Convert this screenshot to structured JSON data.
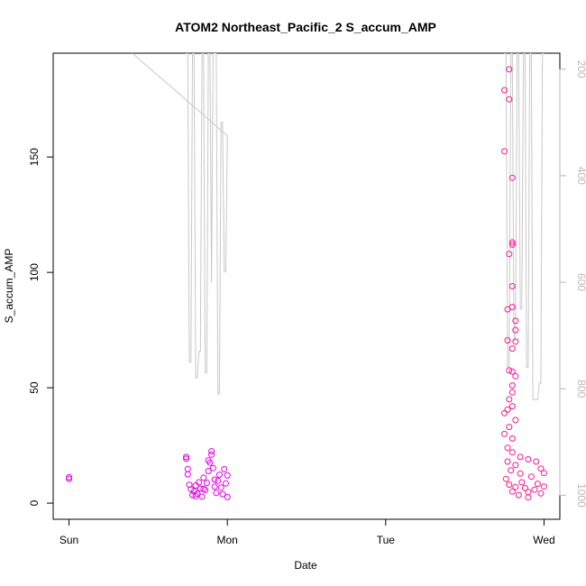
{
  "chart_data": {
    "type": "scatter",
    "title": "ATOM2 Northeast_Pacific_2 S_accum_AMP",
    "xlabel": "Date",
    "ylabel": "S_accum_AMP",
    "x_ticks": [
      "Sun",
      "Mon",
      "Tue",
      "Wed"
    ],
    "y_ticks": [
      0,
      50,
      100,
      150
    ],
    "y_right_ticks": [
      200,
      400,
      600,
      800,
      1000
    ],
    "xlim_days": [
      -0.1,
      3.1
    ],
    "ylim": [
      -7,
      195
    ],
    "y_right_lim": [
      1045,
      170
    ],
    "y_right_reversed": true,
    "grid": false,
    "colors": {
      "scatter_mon": "#e600e6",
      "scatter_wed": "#ff1493",
      "depth_line": "#c8c8c8",
      "right_axis": "#b8b8b8"
    },
    "series": [
      {
        "name": "",
        "kind": "scatter",
        "color": "#e600e6",
        "points": [
          [
            0.0,
            10.5
          ],
          [
            0.0,
            11.2
          ],
          [
            0.74,
            20.0
          ],
          [
            0.74,
            19.2
          ],
          [
            0.75,
            14.8
          ],
          [
            0.75,
            12.5
          ],
          [
            0.76,
            8.0
          ],
          [
            0.77,
            6.0
          ],
          [
            0.78,
            3.5
          ],
          [
            0.79,
            5.2
          ],
          [
            0.8,
            7.6
          ],
          [
            0.81,
            4.1
          ],
          [
            0.82,
            9.0
          ],
          [
            0.83,
            6.3
          ],
          [
            0.84,
            2.8
          ],
          [
            0.85,
            11.0
          ],
          [
            0.86,
            5.7
          ],
          [
            0.87,
            8.8
          ],
          [
            0.88,
            13.9
          ],
          [
            0.89,
            17.5
          ],
          [
            0.9,
            21.0
          ],
          [
            0.9,
            22.5
          ],
          [
            0.91,
            15.2
          ],
          [
            0.92,
            7.1
          ],
          [
            0.93,
            4.4
          ],
          [
            0.94,
            9.7
          ],
          [
            0.95,
            12.3
          ],
          [
            0.96,
            6.8
          ],
          [
            0.97,
            3.9
          ],
          [
            0.98,
            14.7
          ],
          [
            0.99,
            8.5
          ],
          [
            1.0,
            2.6
          ],
          [
            1.0,
            12.0
          ],
          [
            0.88,
            18.5
          ],
          [
            0.85,
            6.2
          ],
          [
            0.8,
            3.0
          ],
          [
            0.92,
            10.2
          ]
        ]
      },
      {
        "name": "",
        "kind": "scatter",
        "color": "#ff1493",
        "points": [
          [
            2.75,
            152.5
          ],
          [
            2.75,
            179.0
          ],
          [
            2.78,
            188.0
          ],
          [
            2.78,
            175.0
          ],
          [
            2.8,
            141.0
          ],
          [
            2.8,
            113.0
          ],
          [
            2.8,
            112.0
          ],
          [
            2.78,
            108.0
          ],
          [
            2.8,
            94.0
          ],
          [
            2.8,
            85.0
          ],
          [
            2.77,
            84.0
          ],
          [
            2.82,
            79.0
          ],
          [
            2.82,
            75.0
          ],
          [
            2.82,
            70.0
          ],
          [
            2.77,
            70.5
          ],
          [
            2.8,
            67.0
          ],
          [
            2.8,
            57.0
          ],
          [
            2.78,
            57.5
          ],
          [
            2.82,
            55.0
          ],
          [
            2.8,
            51.0
          ],
          [
            2.8,
            48.0
          ],
          [
            2.78,
            45.0
          ],
          [
            2.8,
            42.0
          ],
          [
            2.75,
            39.0
          ],
          [
            2.77,
            40.5
          ],
          [
            2.82,
            36.0
          ],
          [
            2.78,
            33.0
          ],
          [
            2.75,
            30.0
          ],
          [
            2.8,
            28.0
          ],
          [
            2.77,
            24.0
          ],
          [
            2.8,
            22.0
          ],
          [
            2.77,
            18.0
          ],
          [
            2.82,
            16.5
          ],
          [
            2.85,
            20.0
          ],
          [
            2.9,
            19.0
          ],
          [
            2.95,
            18.0
          ],
          [
            2.98,
            15.0
          ],
          [
            2.76,
            10.5
          ],
          [
            2.78,
            8.0
          ],
          [
            2.8,
            5.0
          ],
          [
            2.82,
            7.0
          ],
          [
            2.84,
            3.5
          ],
          [
            2.86,
            9.0
          ],
          [
            2.88,
            6.5
          ],
          [
            2.9,
            2.5
          ],
          [
            2.92,
            11.5
          ],
          [
            2.94,
            5.8
          ],
          [
            2.96,
            8.4
          ],
          [
            2.98,
            4.2
          ],
          [
            3.0,
            7.2
          ],
          [
            3.0,
            13.0
          ],
          [
            2.79,
            14.2
          ],
          [
            2.85,
            12.8
          ],
          [
            2.9,
            4.8
          ]
        ]
      },
      {
        "name": "",
        "kind": "line",
        "axis": "right",
        "color": "#c8c8c8",
        "points": [
          [
            0.4,
            170
          ],
          [
            1.0,
            325
          ],
          [
            1.0,
            345
          ],
          [
            1.0,
            330
          ],
          [
            0.99,
            580
          ],
          [
            0.98,
            580
          ],
          [
            0.97,
            300
          ],
          [
            0.96,
            300
          ],
          [
            0.95,
            810
          ],
          [
            0.94,
            810
          ],
          [
            0.93,
            170
          ],
          [
            0.91,
            170
          ],
          [
            0.9,
            600
          ],
          [
            0.89,
            170
          ],
          [
            0.88,
            170
          ],
          [
            0.87,
            770
          ],
          [
            0.86,
            770
          ],
          [
            0.85,
            170
          ],
          [
            0.84,
            170
          ],
          [
            0.83,
            730
          ],
          [
            0.82,
            730
          ],
          [
            0.81,
            780
          ],
          [
            0.8,
            780
          ],
          [
            0.79,
            170
          ],
          [
            0.78,
            170
          ],
          [
            0.77,
            750
          ],
          [
            0.76,
            750
          ],
          [
            0.75,
            170
          ],
          [
            0.74,
            170
          ]
        ]
      },
      {
        "name": "",
        "kind": "line",
        "axis": "right",
        "color": "#c8c8c8",
        "points": [
          [
            2.75,
            170
          ],
          [
            2.76,
            170
          ],
          [
            2.77,
            760
          ],
          [
            2.78,
            760
          ],
          [
            2.79,
            170
          ],
          [
            2.8,
            170
          ],
          [
            2.81,
            710
          ],
          [
            2.82,
            710
          ],
          [
            2.83,
            170
          ],
          [
            2.84,
            170
          ],
          [
            2.85,
            650
          ],
          [
            2.86,
            650
          ],
          [
            2.87,
            170
          ],
          [
            2.88,
            170
          ],
          [
            2.89,
            760
          ],
          [
            2.9,
            760
          ],
          [
            2.91,
            170
          ],
          [
            2.92,
            170
          ],
          [
            2.93,
            820
          ],
          [
            2.96,
            820
          ],
          [
            2.97,
            790
          ],
          [
            2.98,
            790
          ],
          [
            2.99,
            170
          ],
          [
            3.0,
            170
          ]
        ]
      }
    ]
  }
}
